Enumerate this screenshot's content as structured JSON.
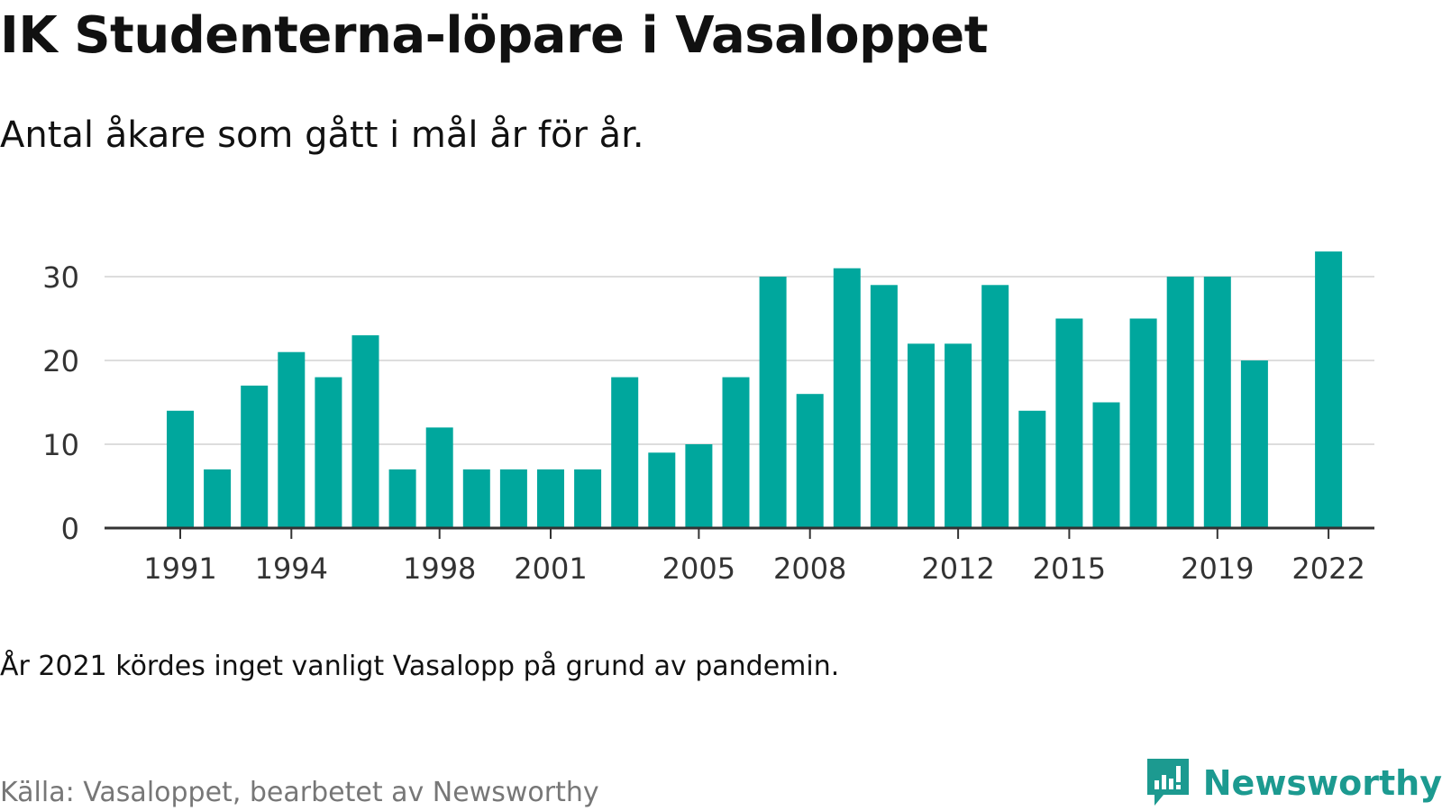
{
  "title": "IK Studenterna-löpare i Vasaloppet",
  "subtitle": "Antal åkare som gått i mål år för år.",
  "note": "År 2021 kördes inget vanligt Vasalopp på grund av pandemin.",
  "source": "Källa: Vasaloppet, bearbetet av Newsworthy",
  "brand": {
    "name": "Newsworthy",
    "icon": "newsworthy-logo-icon",
    "color": "#1c9a90"
  },
  "chart_data": {
    "type": "bar",
    "categories": [
      "1991",
      "1992",
      "1993",
      "1994",
      "1995",
      "1996",
      "1997",
      "1998",
      "1999",
      "2000",
      "2001",
      "2002",
      "2003",
      "2004",
      "2005",
      "2006",
      "2007",
      "2008",
      "2009",
      "2010",
      "2011",
      "2012",
      "2013",
      "2014",
      "2015",
      "2016",
      "2017",
      "2018",
      "2019",
      "2020",
      "2021",
      "2022"
    ],
    "values": [
      14,
      7,
      17,
      21,
      18,
      23,
      7,
      12,
      7,
      7,
      7,
      7,
      18,
      9,
      10,
      18,
      30,
      16,
      31,
      29,
      22,
      22,
      29,
      14,
      25,
      15,
      25,
      30,
      30,
      20,
      null,
      33
    ],
    "x_tick_labels": [
      "1991",
      "1994",
      "1998",
      "2001",
      "2005",
      "2008",
      "2012",
      "2015",
      "2019",
      "2022"
    ],
    "y_ticks": [
      0,
      10,
      20,
      30
    ],
    "ylim": [
      0,
      35
    ],
    "grid": true,
    "bar_color": "#00a79d",
    "xlabel": "",
    "ylabel": ""
  }
}
